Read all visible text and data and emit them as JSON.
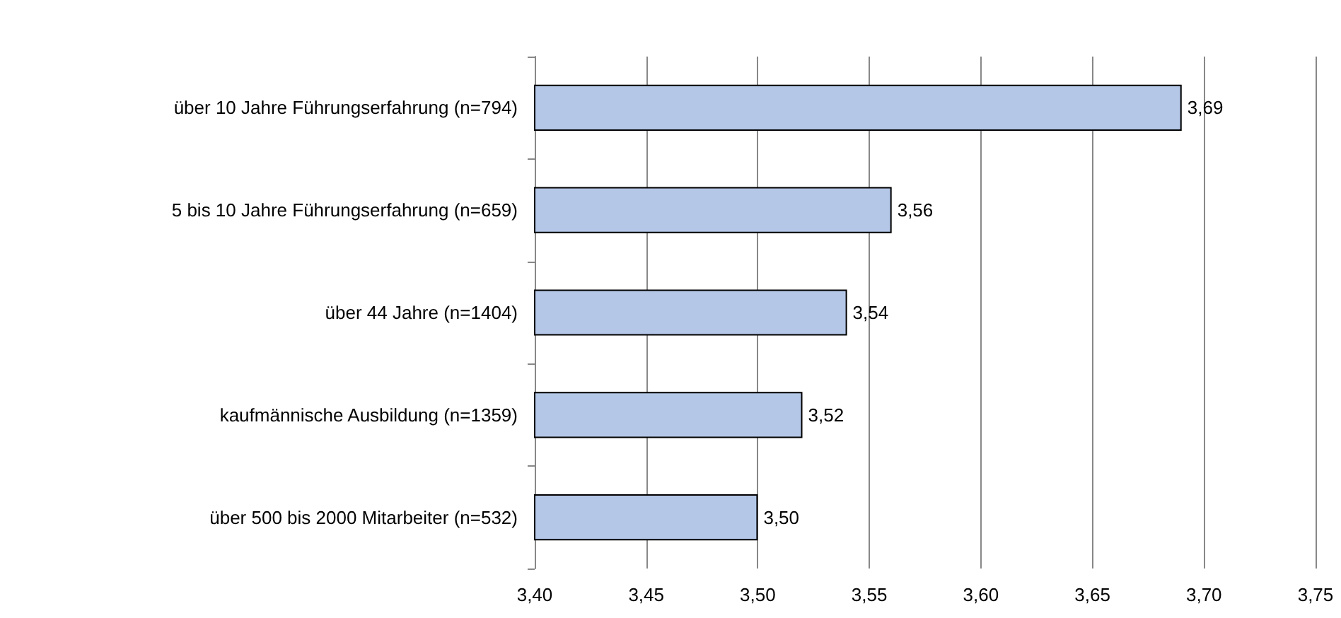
{
  "chart_data": {
    "type": "bar",
    "orientation": "horizontal",
    "categories": [
      "über 10 Jahre Führungserfahrung (n=794)",
      "5 bis 10 Jahre Führungserfahrung (n=659)",
      "über 44 Jahre (n=1404)",
      "kaufmännische Ausbildung (n=1359)",
      "über 500 bis 2000 Mitarbeiter (n=532)"
    ],
    "values": [
      3.69,
      3.56,
      3.54,
      3.52,
      3.5
    ],
    "value_labels": [
      "3,69",
      "3,56",
      "3,54",
      "3,52",
      "3,50"
    ],
    "color": "#b4c7e7",
    "xlim": [
      3.4,
      3.75
    ],
    "xticks": [
      {
        "value": 3.4,
        "label": "3,40"
      },
      {
        "value": 3.45,
        "label": "3,45"
      },
      {
        "value": 3.5,
        "label": "3,50"
      },
      {
        "value": 3.55,
        "label": "3,55"
      },
      {
        "value": 3.6,
        "label": "3,60"
      },
      {
        "value": 3.65,
        "label": "3,65"
      },
      {
        "value": 3.7,
        "label": "3,70"
      },
      {
        "value": 3.75,
        "label": "3,75"
      }
    ],
    "grid": "x"
  }
}
